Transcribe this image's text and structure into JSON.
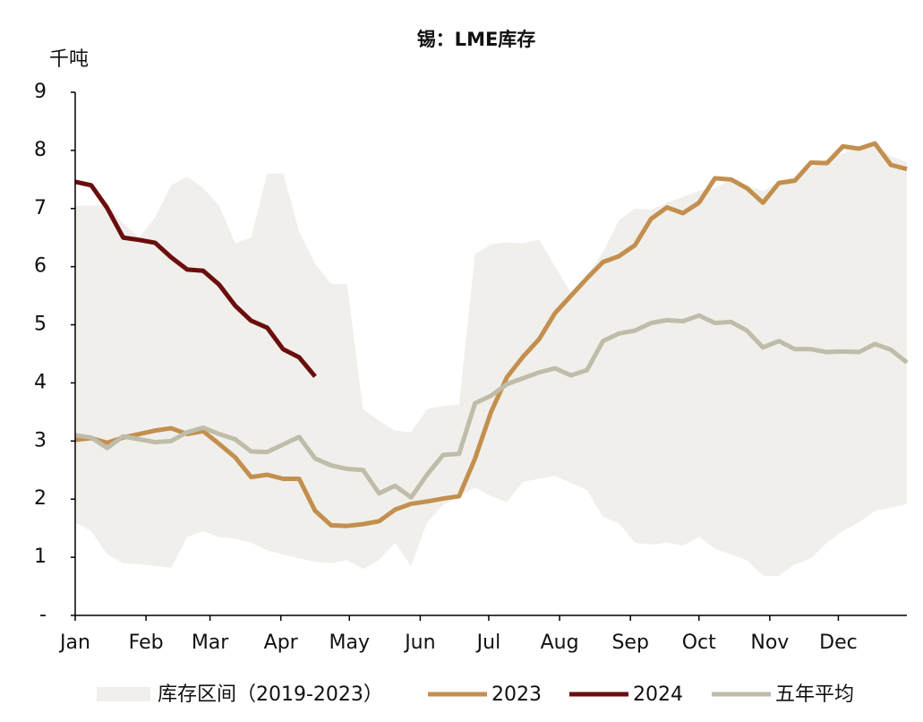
{
  "chart_data": {
    "type": "line",
    "title": "锡：LME库存",
    "y_label": "千吨",
    "xlim": [
      1,
      365
    ],
    "xticks": [
      {
        "value": 1,
        "label": "Jan"
      },
      {
        "value": 32,
        "label": "Feb"
      },
      {
        "value": 60,
        "label": "Mar"
      },
      {
        "value": 91,
        "label": "Apr"
      },
      {
        "value": 121,
        "label": "May"
      },
      {
        "value": 152,
        "label": "Jun"
      },
      {
        "value": 182,
        "label": "Jul"
      },
      {
        "value": 213,
        "label": "Aug"
      },
      {
        "value": 244,
        "label": "Sep"
      },
      {
        "value": 274,
        "label": "Oct"
      },
      {
        "value": 305,
        "label": "Nov"
      },
      {
        "value": 335,
        "label": "Dec"
      }
    ],
    "ylim": [
      0,
      9
    ],
    "yticks": [
      {
        "value": 0,
        "label": "-"
      },
      1,
      2,
      3,
      4,
      5,
      6,
      7,
      8,
      9
    ],
    "x": [
      1,
      8,
      15,
      22,
      29,
      36,
      43,
      50,
      57,
      64,
      71,
      78,
      85,
      92,
      99,
      106,
      113,
      120,
      127,
      134,
      141,
      148,
      155,
      162,
      169,
      176,
      183,
      190,
      197,
      204,
      211,
      218,
      225,
      232,
      239,
      246,
      253,
      260,
      267,
      274,
      281,
      288,
      295,
      302,
      309,
      316,
      323,
      330,
      337,
      344,
      351,
      358,
      365
    ],
    "series": [
      {
        "name": "库存区间（2019-2023）",
        "kind": "band",
        "color": "#f0efeb",
        "high": [
          7.05,
          7.05,
          7.05,
          6.75,
          6.5,
          6.85,
          7.4,
          7.55,
          7.35,
          7.05,
          6.4,
          6.5,
          7.6,
          7.6,
          6.6,
          6.05,
          5.7,
          5.7,
          3.55,
          3.35,
          3.18,
          3.15,
          3.55,
          3.6,
          3.63,
          6.22,
          6.38,
          6.42,
          6.4,
          6.47,
          6.0,
          5.55,
          5.85,
          6.25,
          6.8,
          7.0,
          6.98,
          7.1,
          7.2,
          7.3,
          7.35,
          7.5,
          7.4,
          7.3,
          7.45,
          7.55,
          7.7,
          7.85,
          7.95,
          8.05,
          8.1,
          7.9,
          7.8
        ],
        "low": [
          1.6,
          1.45,
          1.05,
          0.9,
          0.88,
          0.85,
          0.82,
          1.35,
          1.45,
          1.35,
          1.32,
          1.25,
          1.12,
          1.05,
          0.98,
          0.92,
          0.9,
          0.95,
          0.8,
          0.95,
          1.25,
          0.85,
          1.6,
          1.9,
          2.05,
          2.2,
          2.05,
          1.95,
          2.3,
          2.35,
          2.4,
          2.28,
          2.15,
          1.7,
          1.58,
          1.25,
          1.22,
          1.25,
          1.2,
          1.35,
          1.15,
          1.05,
          0.95,
          0.68,
          0.68,
          0.88,
          0.98,
          1.25,
          1.45,
          1.6,
          1.8,
          1.85,
          1.92
        ]
      },
      {
        "name": "2023",
        "color": "#c38f4e",
        "values": [
          3.02,
          3.05,
          2.97,
          3.06,
          3.12,
          3.18,
          3.22,
          3.12,
          3.17,
          2.95,
          2.72,
          2.38,
          2.42,
          2.35,
          2.35,
          1.8,
          1.55,
          1.54,
          1.57,
          1.62,
          1.82,
          1.92,
          1.96,
          2.01,
          2.05,
          2.7,
          3.5,
          4.1,
          4.45,
          4.75,
          5.2,
          5.5,
          5.8,
          6.08,
          6.18,
          6.37,
          6.82,
          7.02,
          6.92,
          7.1,
          7.52,
          7.5,
          7.35,
          7.1,
          7.44,
          7.48,
          7.79,
          7.78,
          8.07,
          8.03,
          8.12,
          7.75,
          7.68
        ]
      },
      {
        "name": "2024",
        "color": "#6b0d0d",
        "values": [
          7.46,
          7.4,
          7.01,
          6.5,
          6.46,
          6.41,
          6.16,
          5.95,
          5.93,
          5.69,
          5.33,
          5.07,
          4.95,
          4.58,
          4.44,
          4.11,
          null,
          null,
          null,
          null,
          null,
          null,
          null,
          null,
          null,
          null,
          null,
          null,
          null,
          null,
          null,
          null,
          null,
          null,
          null,
          null,
          null,
          null,
          null,
          null,
          null,
          null,
          null,
          null,
          null,
          null,
          null,
          null,
          null,
          null,
          null,
          null,
          null
        ]
      },
      {
        "name": "五年平均",
        "color": "#bfbcaa",
        "values": [
          3.1,
          3.06,
          2.88,
          3.08,
          3.03,
          2.98,
          3.0,
          3.15,
          3.23,
          3.12,
          3.03,
          2.82,
          2.81,
          2.94,
          3.07,
          2.7,
          2.58,
          2.52,
          2.5,
          2.1,
          2.23,
          2.03,
          2.42,
          2.76,
          2.78,
          3.65,
          3.78,
          3.98,
          4.08,
          4.18,
          4.25,
          4.13,
          4.22,
          4.72,
          4.85,
          4.9,
          5.03,
          5.08,
          5.06,
          5.16,
          5.03,
          5.05,
          4.9,
          4.61,
          4.72,
          4.58,
          4.58,
          4.53,
          4.54,
          4.53,
          4.67,
          4.57,
          4.35
        ]
      }
    ]
  }
}
